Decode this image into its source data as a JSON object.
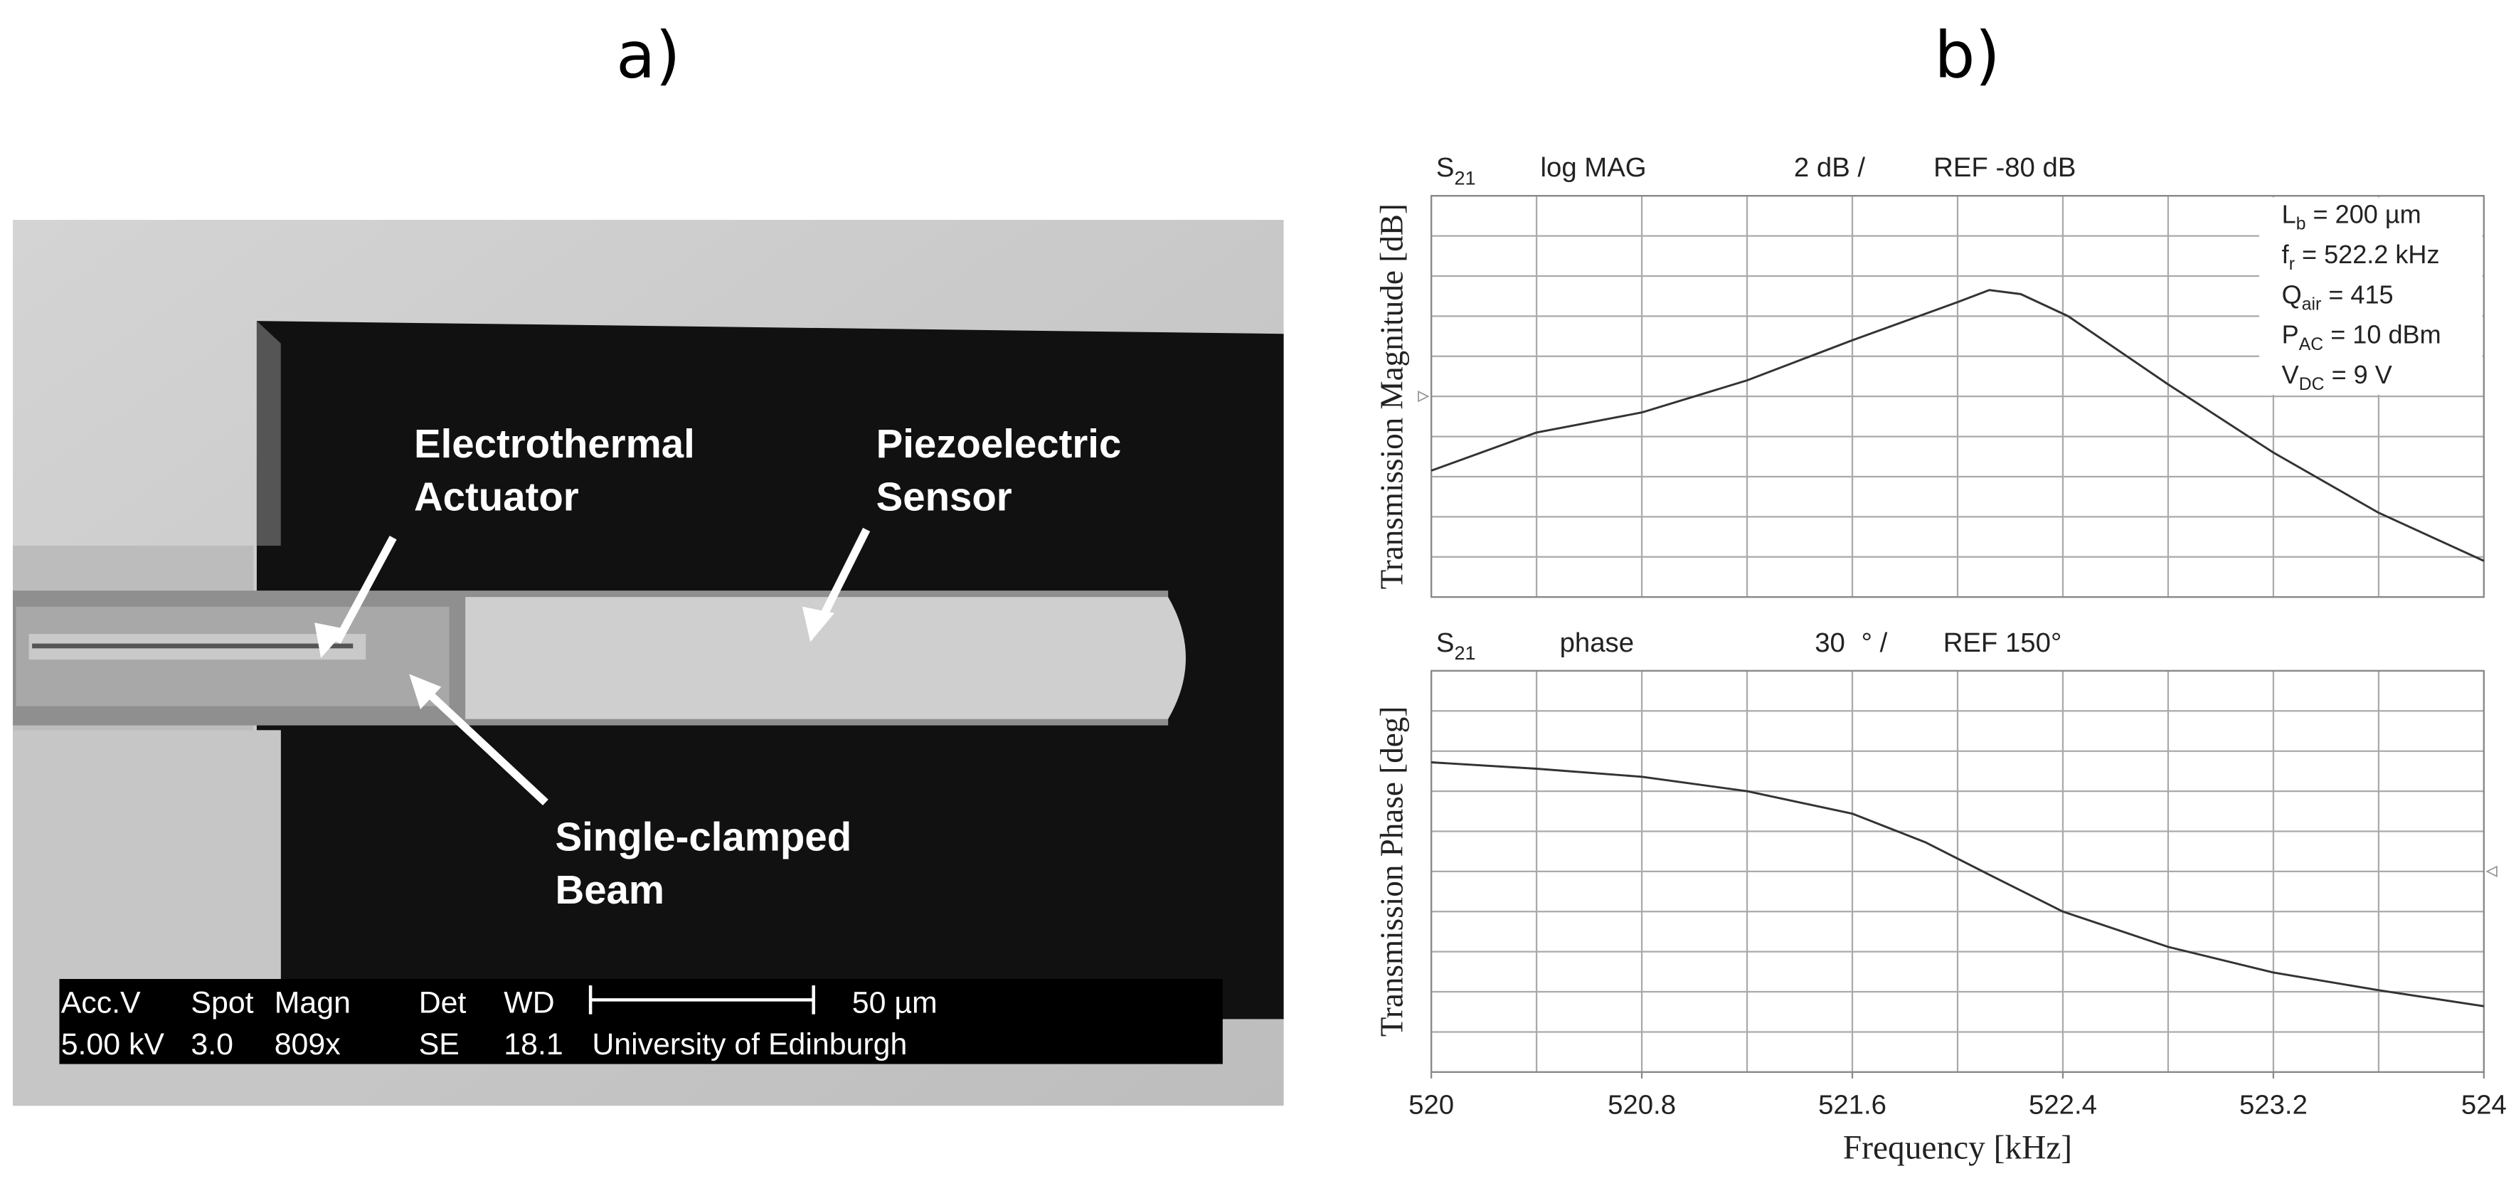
{
  "panel_labels": {
    "a": "a)",
    "b": "b)"
  },
  "sem_image": {
    "labels": {
      "actuator": [
        "Electrothermal",
        "Actuator"
      ],
      "sensor": [
        "Piezoelectric",
        "Sensor"
      ],
      "beam": [
        "Single-clamped",
        "Beam"
      ]
    },
    "info_bar": {
      "headers": [
        "Acc.V",
        "Spot",
        "Magn",
        "Det",
        "WD"
      ],
      "values": [
        "5.00 kV",
        "3.0",
        "809x",
        "SE",
        "18.1"
      ],
      "scale_label": "50 µm",
      "institution": "University of Edinburgh"
    }
  },
  "chart_data": [
    {
      "type": "line",
      "header": {
        "parameter": "S",
        "parameter_sub": "21",
        "format": "log MAG",
        "scale": "2 dB /",
        "reference": "REF -80 dB"
      },
      "reference_value": -80,
      "reference_side": "left",
      "ylabel": "Transmission Magnitude [dB]",
      "annotations": [
        [
          "L",
          "b",
          " = 200 µm"
        ],
        [
          "f",
          "r",
          " = 522.2 kHz"
        ],
        [
          "Q",
          "air",
          " = 415"
        ],
        [
          "P",
          "AC",
          " = 10 dBm"
        ],
        [
          "V",
          "DC",
          " = 9 V"
        ]
      ],
      "x": [
        520,
        520.4,
        520.8,
        521.2,
        521.6,
        522.0,
        522.12,
        522.24,
        522.42,
        522.8,
        523.2,
        523.6,
        524
      ],
      "values": [
        -83.7,
        -81.8,
        -80.8,
        -79.2,
        -77.2,
        -75.3,
        -74.7,
        -74.9,
        -76.0,
        -79.4,
        -82.8,
        -85.8,
        -88.2
      ],
      "color": "#333333",
      "xlim": [
        520,
        524
      ],
      "ylim": [
        -90,
        -70
      ],
      "xgrid": [
        520,
        520.4,
        520.8,
        521.2,
        521.6,
        522,
        522.4,
        522.8,
        523.2,
        523.6,
        524
      ],
      "ygrid": [
        -90,
        -88,
        -86,
        -84,
        -82,
        -80,
        -78,
        -76,
        -74,
        -72,
        -70
      ]
    },
    {
      "type": "line",
      "header": {
        "parameter": "S",
        "parameter_sub": "21",
        "format": "phase",
        "scale": "30",
        "scale_unit": "° /",
        "reference": "REF 150°"
      },
      "reference_value": 150,
      "reference_side": "right",
      "ylabel": "Transmission Phase [deg]",
      "xlabel": "Frequency [kHz]",
      "x": [
        520,
        520.4,
        520.8,
        521.2,
        521.6,
        521.88,
        522.12,
        522.4,
        522.8,
        523.2,
        523.6,
        524
      ],
      "values": [
        231.6,
        226.8,
        220.8,
        210,
        193.2,
        171.6,
        147.6,
        120,
        93.6,
        74.4,
        61.2,
        49.2
      ],
      "color": "#333333",
      "xlim": [
        520,
        524
      ],
      "ylim": [
        0,
        300
      ],
      "xticks": [
        520,
        520.8,
        521.6,
        522.4,
        523.2,
        524
      ],
      "xgrid": [
        520,
        520.4,
        520.8,
        521.2,
        521.6,
        522,
        522.4,
        522.8,
        523.2,
        523.6,
        524
      ],
      "ygrid": [
        0,
        30,
        60,
        90,
        120,
        150,
        180,
        210,
        240,
        270,
        300
      ]
    }
  ]
}
